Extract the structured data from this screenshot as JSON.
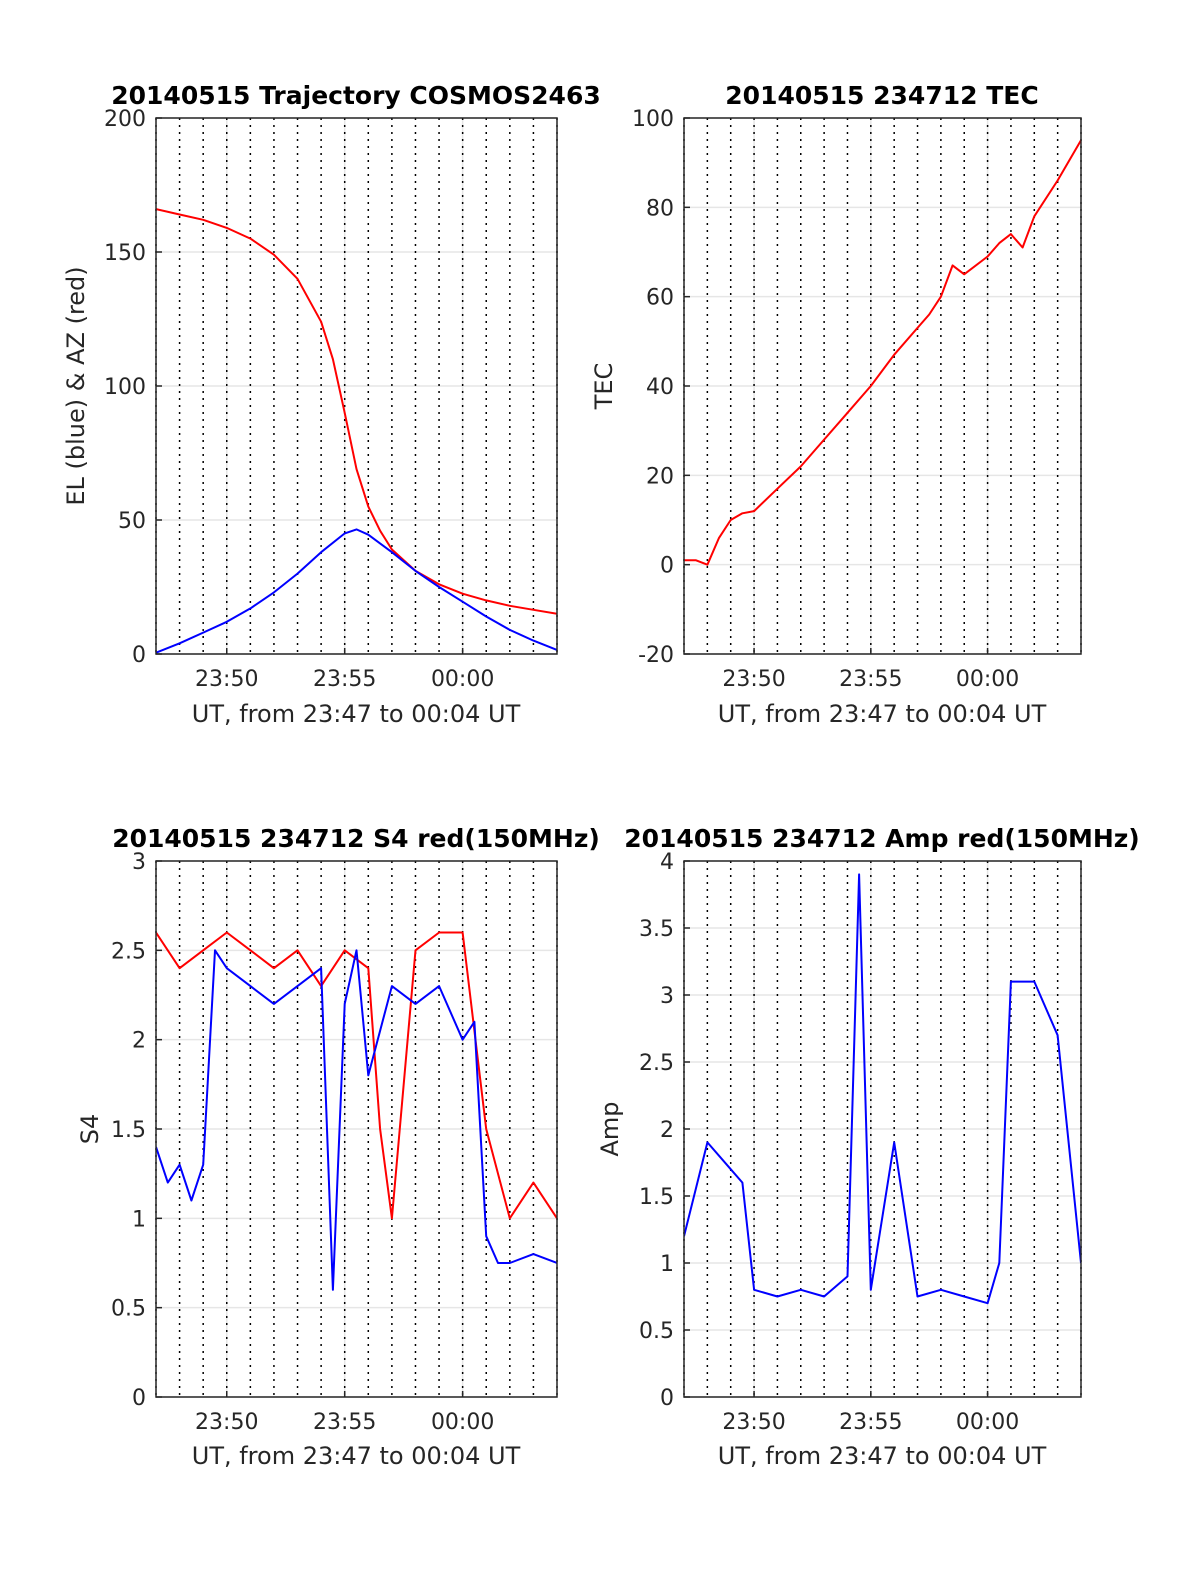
{
  "figure": {
    "background": "#ffffff",
    "colors": {
      "blue": "#0000ff",
      "red": "#ff0000",
      "grid": "#e6e6e6",
      "axis": "#262626",
      "vline": "#000000"
    },
    "vertical_markers": "dotted black lines at 1-minute spacing"
  },
  "chart_data": [
    {
      "type": "line",
      "title": "20140515 Trajectory COSMOS2463",
      "xlabel": "UT, from 23:47 to 00:04 UT",
      "ylabel": "EL (blue) & AZ (red)",
      "xlim": [
        -13,
        4
      ],
      "ylim": [
        0,
        200
      ],
      "xticks": [
        -10,
        -5,
        0
      ],
      "xticklabels": [
        "23:50",
        "23:55",
        "00:00"
      ],
      "yticks": [
        0,
        50,
        100,
        150,
        200
      ],
      "yticklabels": [
        "0",
        "50",
        "100",
        "150",
        "200"
      ],
      "grid": true,
      "series": [
        {
          "color": "#ff0000",
          "x": [
            -13,
            -12,
            -11,
            -10,
            -9,
            -8,
            -7,
            -6,
            -5.5,
            -5,
            -4.5,
            -4,
            -3.5,
            -3,
            -2,
            -1,
            0,
            1,
            2,
            3,
            4
          ],
          "y": [
            166,
            164,
            162,
            159,
            155,
            149,
            140,
            124,
            110,
            90,
            69,
            55,
            46,
            39,
            31,
            26,
            22.5,
            20,
            18,
            16.5,
            15
          ]
        },
        {
          "color": "#0000ff",
          "x": [
            -13,
            -12,
            -11,
            -10,
            -9,
            -8,
            -7,
            -6,
            -5,
            -4.5,
            -4,
            -3,
            -2,
            -1,
            0,
            1,
            2,
            3,
            4
          ],
          "y": [
            0.5,
            4,
            8,
            12,
            17,
            23,
            30,
            38,
            45,
            46.5,
            44.5,
            38,
            31,
            25,
            19.5,
            14,
            9,
            5,
            1.5
          ]
        }
      ]
    },
    {
      "type": "line",
      "title": "20140515 234712 TEC",
      "xlabel": "UT, from 23:47 to 00:04 UT",
      "ylabel": "TEC",
      "xlim": [
        -13,
        4
      ],
      "ylim": [
        -20,
        100
      ],
      "xticks": [
        -10,
        -5,
        0
      ],
      "xticklabels": [
        "23:50",
        "23:55",
        "00:00"
      ],
      "yticks": [
        -20,
        0,
        20,
        40,
        60,
        80,
        100
      ],
      "yticklabels": [
        "-20",
        "0",
        "20",
        "40",
        "60",
        "80",
        "100"
      ],
      "grid": true,
      "series": [
        {
          "color": "#ff0000",
          "x": [
            -13,
            -12.5,
            -12,
            -11.5,
            -11,
            -10.5,
            -10,
            -9,
            -8,
            -7,
            -6,
            -5,
            -4,
            -3,
            -2.5,
            -2,
            -1.5,
            -1,
            0,
            0.5,
            1,
            1.5,
            2,
            3,
            4
          ],
          "y": [
            1,
            1,
            0,
            6,
            10,
            11.5,
            12,
            17,
            22,
            28,
            34,
            40,
            47,
            53,
            56,
            60,
            67,
            65,
            69,
            72,
            74,
            71,
            78,
            86,
            95
          ]
        }
      ]
    },
    {
      "type": "line",
      "title": "20140515 234712 S4 red(150MHz)",
      "xlabel": "UT, from 23:47 to 00:04 UT",
      "ylabel": "S4",
      "xlim": [
        -13,
        4
      ],
      "ylim": [
        0,
        3
      ],
      "xticks": [
        -10,
        -5,
        0
      ],
      "xticklabels": [
        "23:50",
        "23:55",
        "00:00"
      ],
      "yticks": [
        0,
        0.5,
        1,
        1.5,
        2,
        2.5,
        3
      ],
      "yticklabels": [
        "0",
        "0.5",
        "1",
        "1.5",
        "2",
        "2.5",
        "3"
      ],
      "grid": true,
      "series": [
        {
          "color": "#ff0000",
          "x": [
            -13,
            -12,
            -11,
            -10,
            -9,
            -8,
            -7,
            -6,
            -5,
            -4,
            -3.5,
            -3,
            -2,
            -1,
            0,
            1,
            2,
            3,
            4
          ],
          "y": [
            2.6,
            2.4,
            2.5,
            2.6,
            2.5,
            2.4,
            2.5,
            2.3,
            2.5,
            2.4,
            1.5,
            1.0,
            2.5,
            2.6,
            2.6,
            1.5,
            1.0,
            1.2,
            1.0
          ]
        },
        {
          "color": "#0000ff",
          "x": [
            -13,
            -12.5,
            -12,
            -11.5,
            -11,
            -10.5,
            -10,
            -9,
            -8,
            -7,
            -6,
            -5.5,
            -5,
            -4.5,
            -4,
            -3,
            -2,
            -1,
            0,
            0.5,
            1,
            1.5,
            2,
            3,
            4
          ],
          "y": [
            1.4,
            1.2,
            1.3,
            1.1,
            1.3,
            2.5,
            2.4,
            2.3,
            2.2,
            2.3,
            2.4,
            0.6,
            2.2,
            2.5,
            1.8,
            2.3,
            2.2,
            2.3,
            2.0,
            2.1,
            0.9,
            0.75,
            0.75,
            0.8,
            0.75
          ]
        }
      ]
    },
    {
      "type": "line",
      "title": "20140515 234712 Amp red(150MHz)",
      "xlabel": "UT, from 23:47 to 00:04 UT",
      "ylabel": "Amp",
      "xlim": [
        -13,
        4
      ],
      "ylim": [
        0,
        4
      ],
      "xticks": [
        -10,
        -5,
        0
      ],
      "xticklabels": [
        "23:50",
        "23:55",
        "00:00"
      ],
      "yticks": [
        0,
        0.5,
        1,
        1.5,
        2,
        2.5,
        3,
        3.5,
        4
      ],
      "yticklabels": [
        "0",
        "0.5",
        "1",
        "1.5",
        "2",
        "2.5",
        "3",
        "3.5",
        "4"
      ],
      "grid": true,
      "series": [
        {
          "color": "#0000ff",
          "x": [
            -13,
            -12,
            -11,
            -10.5,
            -10,
            -9,
            -8,
            -7,
            -6,
            -5.5,
            -5,
            -4,
            -3,
            -2,
            -1,
            0,
            0.5,
            1,
            2,
            3,
            4
          ],
          "y": [
            1.2,
            1.9,
            1.7,
            1.6,
            0.8,
            0.75,
            0.8,
            0.75,
            0.9,
            3.9,
            0.8,
            1.9,
            0.75,
            0.8,
            0.75,
            0.7,
            1.0,
            3.1,
            3.1,
            2.7,
            1.0
          ]
        }
      ]
    }
  ]
}
